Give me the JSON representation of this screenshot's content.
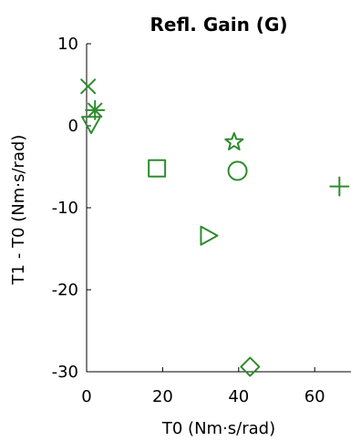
{
  "chart_data": {
    "type": "scatter",
    "title": "Refl. Gain (G)",
    "xlabel": "T0 (Nm·s/rad)",
    "ylabel": "T1 - T0 (Nm·s/rad)",
    "xlim": [
      0,
      66
    ],
    "ylim": [
      -30,
      10
    ],
    "xticks": [
      0,
      20,
      40,
      60
    ],
    "yticks": [
      10,
      0,
      -10,
      -20,
      -30
    ],
    "grid": false,
    "legend": "none",
    "color": "#2e8b2e",
    "points": [
      {
        "x": 0.4,
        "y": 4.8,
        "marker": "x"
      },
      {
        "x": 2.2,
        "y": 1.9,
        "marker": "asterisk"
      },
      {
        "x": 1.2,
        "y": 0.2,
        "marker": "triangle-down"
      },
      {
        "x": 18.5,
        "y": -5.2,
        "marker": "square"
      },
      {
        "x": 38.8,
        "y": -2.0,
        "marker": "pentagram"
      },
      {
        "x": 39.7,
        "y": -5.5,
        "marker": "circle"
      },
      {
        "x": 66.5,
        "y": -7.4,
        "marker": "plus"
      },
      {
        "x": 32.0,
        "y": -13.4,
        "marker": "triangle-right"
      },
      {
        "x": 43.0,
        "y": -29.4,
        "marker": "diamond"
      }
    ]
  }
}
